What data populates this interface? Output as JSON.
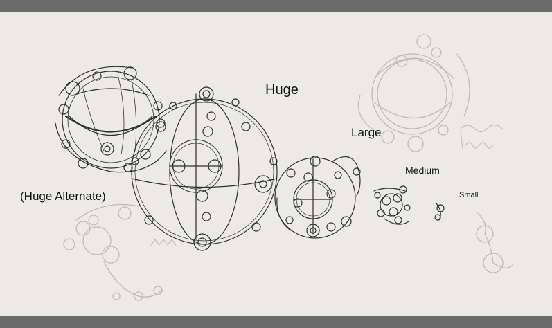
{
  "labels": {
    "huge": "Huge",
    "large": "Large",
    "medium": "Medium",
    "small": "Small",
    "huge_alternate": "(Huge Alternate)"
  },
  "colors": {
    "paper": "#eceae7",
    "border_bar": "#6b6b6b",
    "ink": "#2e2e2e",
    "faint_ink": "#b9b6b2"
  }
}
